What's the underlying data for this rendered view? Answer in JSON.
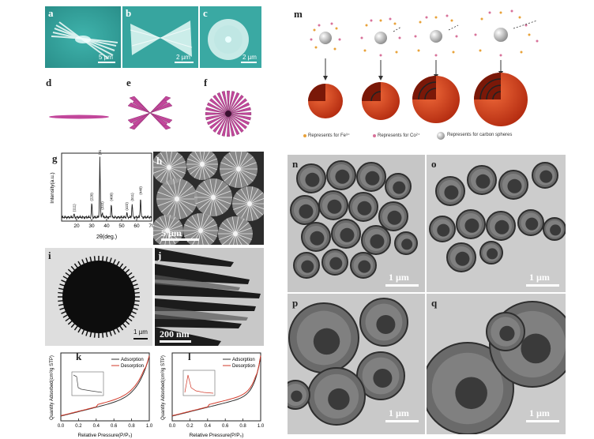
{
  "labels": {
    "a": "a",
    "b": "b",
    "c": "c",
    "d": "d",
    "e": "e",
    "f": "f",
    "g": "g",
    "h": "h",
    "i": "i",
    "j": "j",
    "k": "k",
    "l": "l",
    "m": "m",
    "n": "n",
    "o": "o",
    "p": "p",
    "q": "q"
  },
  "scalebars": {
    "a": "5 µm",
    "b": "2 µm",
    "c": "2 µm",
    "h": "5 µm",
    "i": "1 µm",
    "j": "200 nm",
    "n": "1 µm",
    "o": "1 µm",
    "p": "1 µm",
    "q": "1 µm"
  },
  "legend_m": {
    "fe": "Represents for Fe³⁺",
    "co": "Represents for Co²⁺",
    "carbon": "Represents for carbon spheres"
  },
  "colors": {
    "teal": "#3fa9a4",
    "magenta": "#c2479b",
    "orange": "#d2462c",
    "tem_bg": "#c9c9c9"
  },
  "chart_data": [
    {
      "type": "line",
      "panel": "g",
      "ylabel": "Intensity(a.u.)",
      "xlabel": "2θ(deg.)",
      "xlim": [
        10,
        70
      ],
      "xticks": [
        20,
        30,
        40,
        50,
        60,
        70
      ],
      "peaks": [
        {
          "x": 18.3,
          "h": 0.05,
          "label": "(111)"
        },
        {
          "x": 30.1,
          "h": 0.22,
          "label": "(220)"
        },
        {
          "x": 35.5,
          "h": 0.95,
          "label": "(311)"
        },
        {
          "x": 37.1,
          "h": 0.08,
          "label": "(222)"
        },
        {
          "x": 43.1,
          "h": 0.22,
          "label": "(400)"
        },
        {
          "x": 53.5,
          "h": 0.07,
          "label": "(422)"
        },
        {
          "x": 57.0,
          "h": 0.22,
          "label": "(511)"
        },
        {
          "x": 62.6,
          "h": 0.32,
          "label": "(440)"
        }
      ]
    },
    {
      "type": "line",
      "panel": "k",
      "ylabel": "Quantity Adsorbed(cm³/g STP)",
      "xlabel": "Relative Pressure(P/P₀)",
      "xticks": [
        "0.0",
        "0.2",
        "0.4",
        "0.6",
        "0.8",
        "1.0"
      ],
      "series": [
        {
          "name": "Adsorption"
        },
        {
          "name": "Desorption"
        }
      ]
    },
    {
      "type": "line",
      "panel": "l",
      "ylabel": "Quantity Adsorbed(cm³/g STP)",
      "xlabel": "Relative Pressure(P/P₀)",
      "xticks": [
        "0.0",
        "0.2",
        "0.4",
        "0.6",
        "0.8",
        "1.0"
      ],
      "series": [
        {
          "name": "Adsorption"
        },
        {
          "name": "Desorption"
        }
      ]
    }
  ]
}
